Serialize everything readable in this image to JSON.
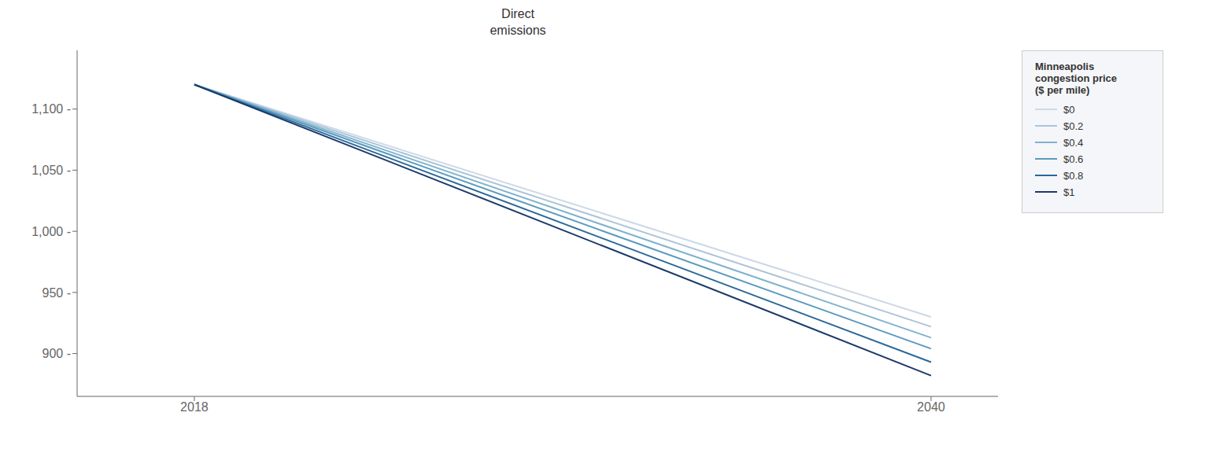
{
  "chart_data": {
    "type": "line",
    "title": "Direct\nemissions",
    "x": [
      2018,
      2040
    ],
    "series": [
      {
        "name": "$0",
        "color": "#ccd9e8",
        "values": [
          1120,
          930
        ]
      },
      {
        "name": "$0.2",
        "color": "#adc4d8",
        "values": [
          1120,
          922
        ]
      },
      {
        "name": "$0.4",
        "color": "#7fb3cc",
        "values": [
          1120,
          913
        ]
      },
      {
        "name": "$0.6",
        "color": "#5a9abf",
        "values": [
          1120,
          904
        ]
      },
      {
        "name": "$0.8",
        "color": "#2a6899",
        "values": [
          1120,
          893
        ]
      },
      {
        "name": "$1",
        "color": "#1b3a6b",
        "values": [
          1120,
          882
        ]
      }
    ],
    "xlim": [
      2014.5,
      2042
    ],
    "xticks": [
      2018,
      2040
    ],
    "ylim": [
      865,
      1148
    ],
    "yticks": [
      {
        "value": 900,
        "label": "900 -"
      },
      {
        "value": 950,
        "label": "950 -"
      },
      {
        "value": 1000,
        "label": "1,000 -"
      },
      {
        "value": 1050,
        "label": "1,050 -"
      },
      {
        "value": 1100,
        "label": "1,100 -"
      }
    ],
    "legend_title": "Minneapolis\ncongestion price\n($ per mile)",
    "legend": "right",
    "grid": false
  }
}
